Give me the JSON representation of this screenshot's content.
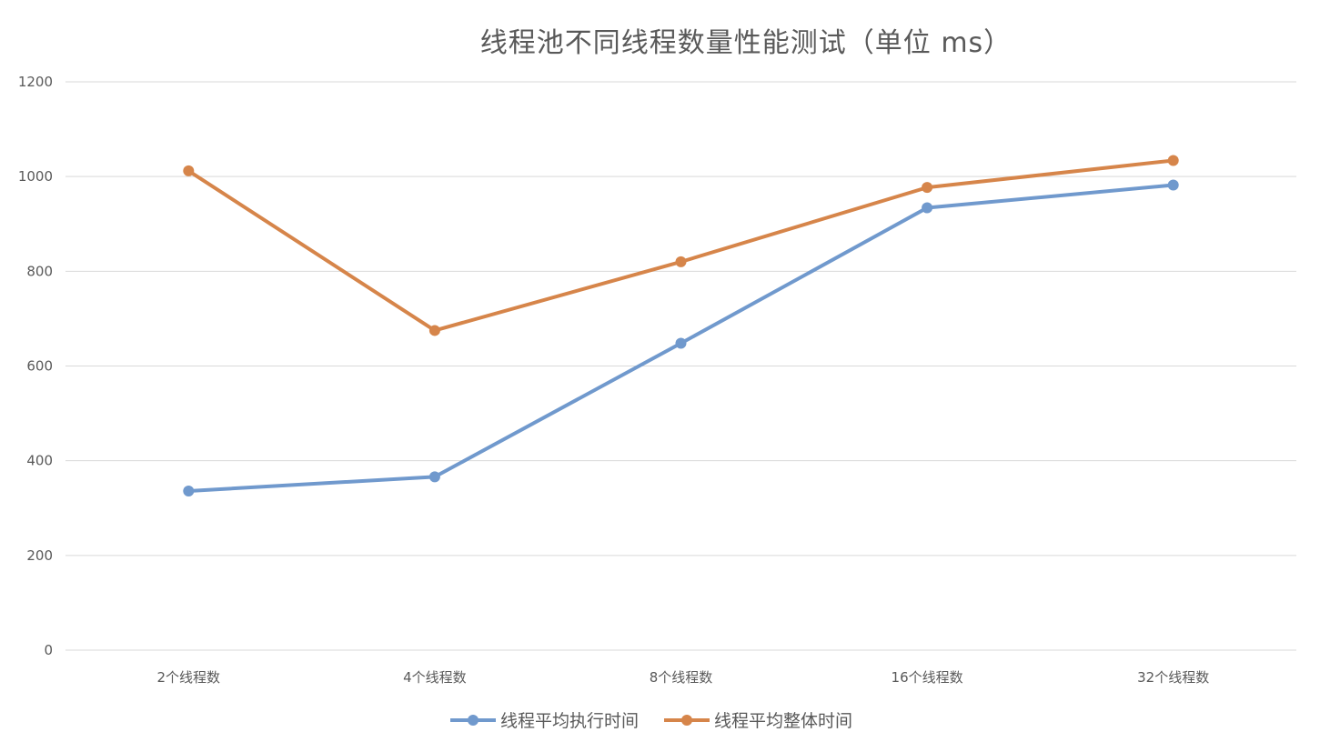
{
  "chart_data": {
    "type": "line",
    "title": "线程池不同线程数量性能测试（单位 ms）",
    "categories": [
      "2个线程数",
      "4个线程数",
      "8个线程数",
      "16个线程数",
      "32个线程数"
    ],
    "series": [
      {
        "name": "线程平均执行时间",
        "values": [
          336,
          366,
          648,
          934,
          982
        ],
        "color": "#7099cd"
      },
      {
        "name": "线程平均整体时间",
        "values": [
          1012,
          675,
          820,
          977,
          1034
        ],
        "color": "#d6854a"
      }
    ],
    "y_ticks": [
      "0",
      "200",
      "400",
      "600",
      "800",
      "1000",
      "1200"
    ],
    "ylim": [
      0,
      1200
    ],
    "grid": true,
    "legend_position": "bottom"
  }
}
